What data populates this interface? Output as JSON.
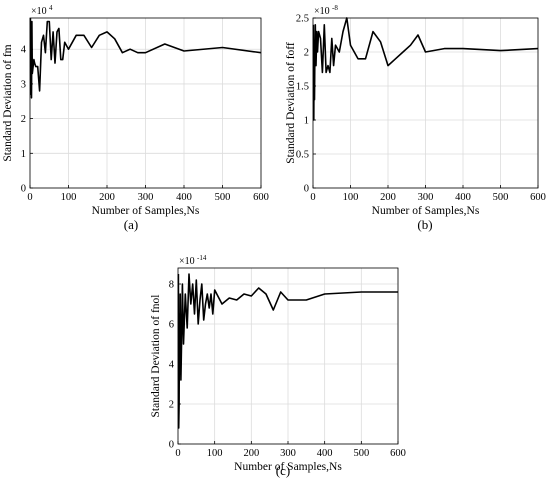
{
  "chart_data": [
    {
      "type": "line",
      "panel_label": "(a)",
      "xlabel": "Number of Samples,Ns",
      "ylabel": "Standard Deviation of fm",
      "exponent_label": "×10",
      "exponent": "4",
      "xlim": [
        0,
        600
      ],
      "ylim": [
        0,
        4.9
      ],
      "xticks": [
        0,
        100,
        200,
        300,
        400,
        500,
        600
      ],
      "yticks": [
        0,
        1,
        2,
        3,
        4
      ],
      "grid": true,
      "series": [
        {
          "x": [
            1,
            2,
            3,
            4,
            5,
            6,
            8,
            10,
            12,
            15,
            20,
            25,
            30,
            35,
            40,
            45,
            50,
            55,
            60,
            65,
            70,
            75,
            80,
            85,
            90,
            100,
            120,
            140,
            160,
            180,
            200,
            220,
            240,
            260,
            280,
            300,
            350,
            400,
            500,
            600
          ],
          "y": [
            4.9,
            2.7,
            3.2,
            2.6,
            4.8,
            3.3,
            3.5,
            3.7,
            3.6,
            3.5,
            3.5,
            2.8,
            4.2,
            4.4,
            3.9,
            4.8,
            4.8,
            3.7,
            4.5,
            3.6,
            4.5,
            4.6,
            3.7,
            3.7,
            4.2,
            4.0,
            4.4,
            4.4,
            4.05,
            4.4,
            4.5,
            4.3,
            3.9,
            4.0,
            3.9,
            3.9,
            4.15,
            3.95,
            4.05,
            3.9
          ]
        }
      ]
    },
    {
      "type": "line",
      "panel_label": "(b)",
      "xlabel": "Number of Samples,Ns",
      "ylabel": "Standard Deviation of foff",
      "exponent_label": "×10",
      "exponent": "-8",
      "xlim": [
        0,
        600
      ],
      "ylim": [
        0,
        2.5
      ],
      "xticks": [
        0,
        100,
        200,
        300,
        400,
        500,
        600
      ],
      "yticks": [
        0,
        0.5,
        1,
        1.5,
        2,
        2.5
      ],
      "grid": true,
      "series": [
        {
          "x": [
            1,
            2,
            3,
            4,
            5,
            6,
            8,
            10,
            12,
            15,
            20,
            25,
            30,
            35,
            40,
            45,
            50,
            55,
            60,
            70,
            80,
            90,
            100,
            120,
            140,
            160,
            180,
            200,
            220,
            240,
            260,
            280,
            300,
            350,
            400,
            500,
            600
          ],
          "y": [
            2.4,
            1.0,
            2.1,
            1.3,
            2.0,
            2.4,
            1.8,
            2.3,
            2.0,
            2.3,
            2.2,
            1.7,
            2.4,
            1.7,
            1.8,
            1.7,
            2.2,
            1.8,
            2.1,
            2.0,
            2.3,
            2.5,
            2.1,
            1.9,
            1.9,
            2.3,
            2.15,
            1.8,
            1.9,
            2.0,
            2.1,
            2.25,
            2.0,
            2.05,
            2.05,
            2.02,
            2.05
          ]
        }
      ]
    },
    {
      "type": "line",
      "panel_label": "(c)",
      "xlabel": "Number of Samples,Ns",
      "ylabel": "Standard Deviation of fnol",
      "exponent_label": "×10",
      "exponent": "-14",
      "xlim": [
        0,
        600
      ],
      "ylim": [
        0,
        8.8
      ],
      "xticks": [
        0,
        100,
        200,
        300,
        400,
        500,
        600
      ],
      "yticks": [
        0,
        2,
        4,
        6,
        8
      ],
      "grid": true,
      "series": [
        {
          "x": [
            1,
            2,
            3,
            4,
            5,
            6,
            8,
            10,
            12,
            15,
            20,
            25,
            30,
            35,
            40,
            45,
            50,
            55,
            60,
            65,
            70,
            75,
            80,
            85,
            90,
            95,
            100,
            120,
            140,
            160,
            180,
            200,
            220,
            240,
            260,
            280,
            300,
            350,
            400,
            500,
            600
          ],
          "y": [
            8.5,
            0.8,
            2.0,
            6.5,
            3.5,
            7.5,
            3.2,
            5.5,
            8.0,
            5.0,
            7.5,
            5.8,
            8.5,
            7.0,
            8.0,
            6.5,
            8.2,
            6.0,
            7.2,
            8.0,
            6.2,
            7.0,
            7.5,
            6.8,
            7.5,
            6.5,
            7.7,
            7.0,
            7.3,
            7.2,
            7.5,
            7.4,
            7.8,
            7.5,
            6.7,
            7.6,
            7.2,
            7.2,
            7.5,
            7.6,
            7.6
          ]
        }
      ]
    }
  ]
}
